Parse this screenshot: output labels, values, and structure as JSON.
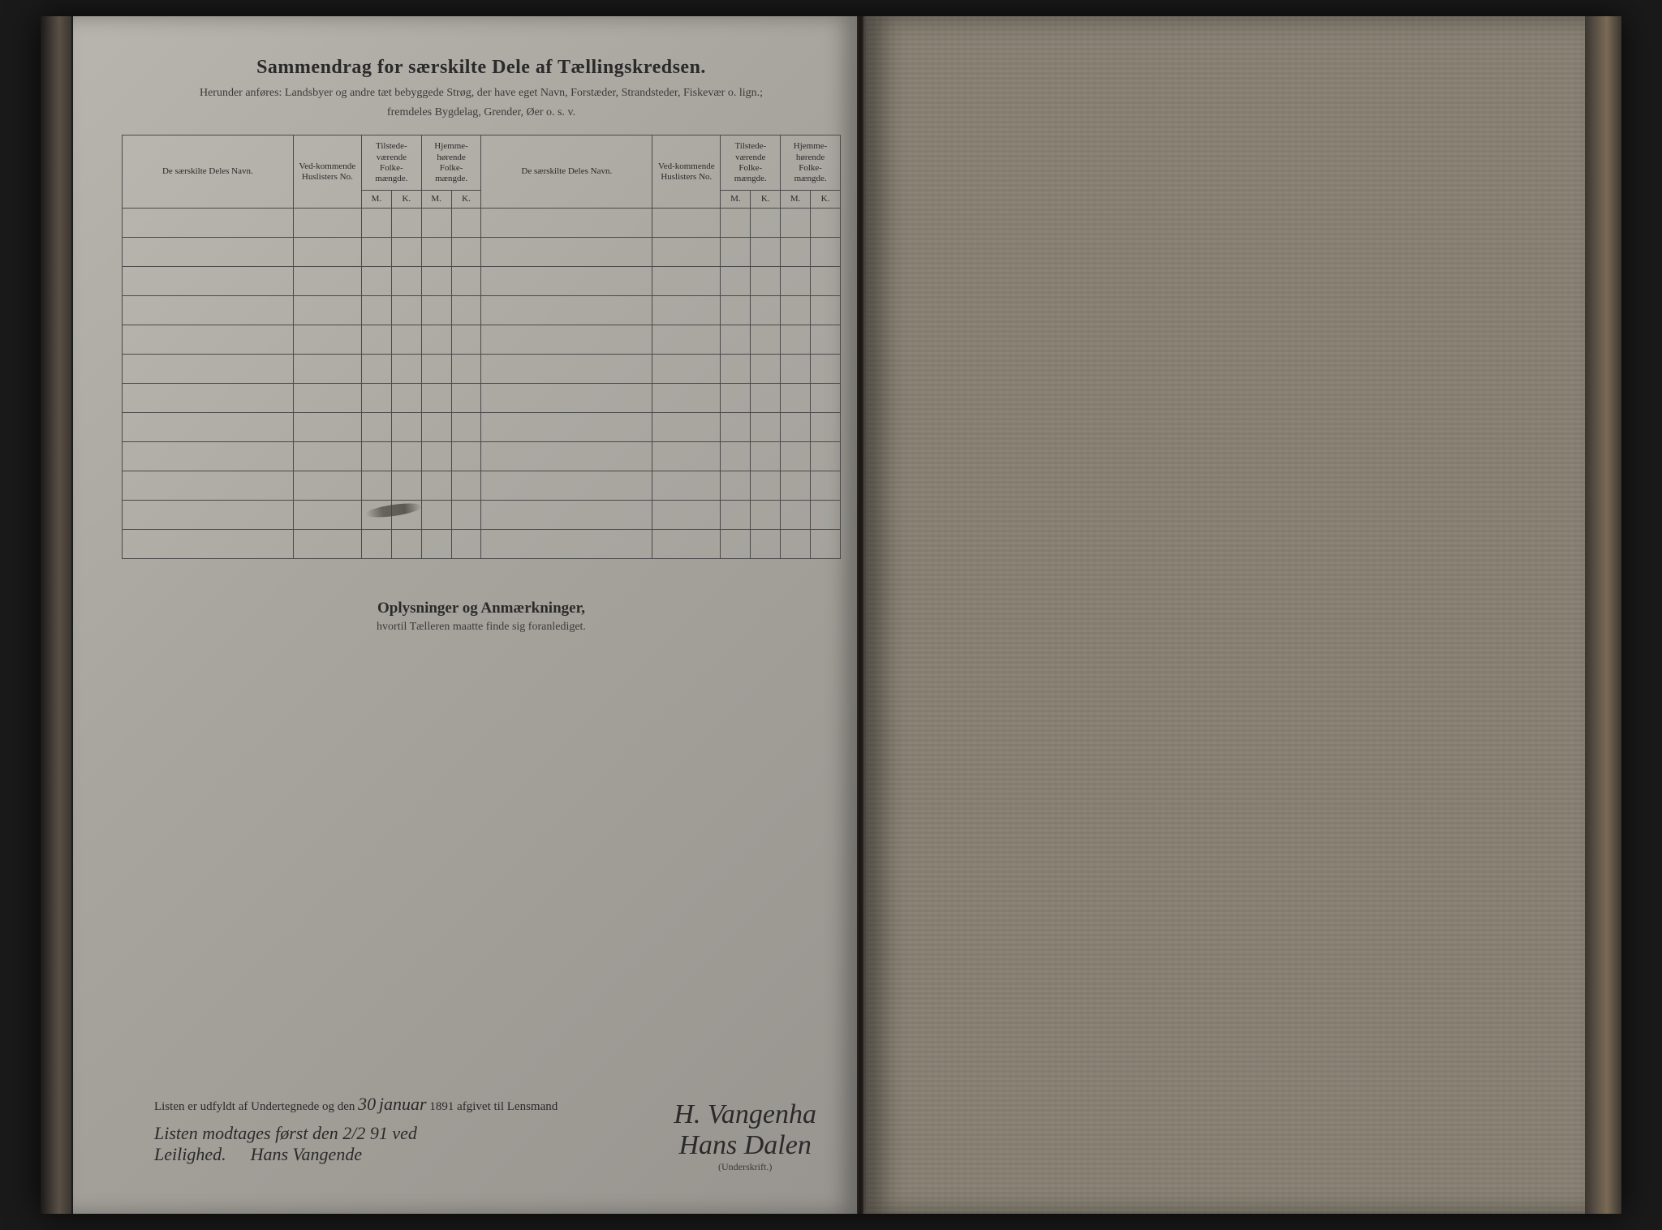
{
  "header": {
    "title": "Sammendrag for særskilte Dele af Tællingskredsen.",
    "subtitle_line1": "Herunder anføres: Landsbyer og andre tæt bebyggede Strøg, der have eget Navn, Forstæder, Strandsteder, Fiskevær o. lign.;",
    "subtitle_line2": "fremdeles Bygdelag, Grender, Øer o. s. v."
  },
  "table": {
    "columns": {
      "name": "De særskilte Deles Navn.",
      "huslister": "Ved-kommende Huslisters No.",
      "tilstede": "Tilstede-værende Folke-mængde.",
      "hjemme": "Hjemme-hørende Folke-mængde.",
      "m": "M.",
      "k": "K."
    },
    "row_count": 12
  },
  "notes_section": {
    "title": "Oplysninger og Anmærkninger,",
    "subtitle": "hvortil Tælleren maatte finde sig foranlediget."
  },
  "footer": {
    "line_prefix": "Listen er udfyldt af Undertegnede og den",
    "date_day": "30",
    "date_month": "januar",
    "year": "1891",
    "line_suffix": "afgivet til Lensmand",
    "signature1": "H. Vangenha",
    "signature2": "Hans Dalen",
    "underskrift": "(Underskrift.)",
    "handwritten_note_line1": "Listen modtages først den 2/2 91 ved",
    "handwritten_note_line2": "Leilighed.",
    "handwritten_note_sign": "Hans Vangende"
  },
  "colors": {
    "page_bg": "#a8a59e",
    "text": "#2a2a2a",
    "border": "#4a4a4a",
    "dark_bg": "#1a1a1a"
  }
}
